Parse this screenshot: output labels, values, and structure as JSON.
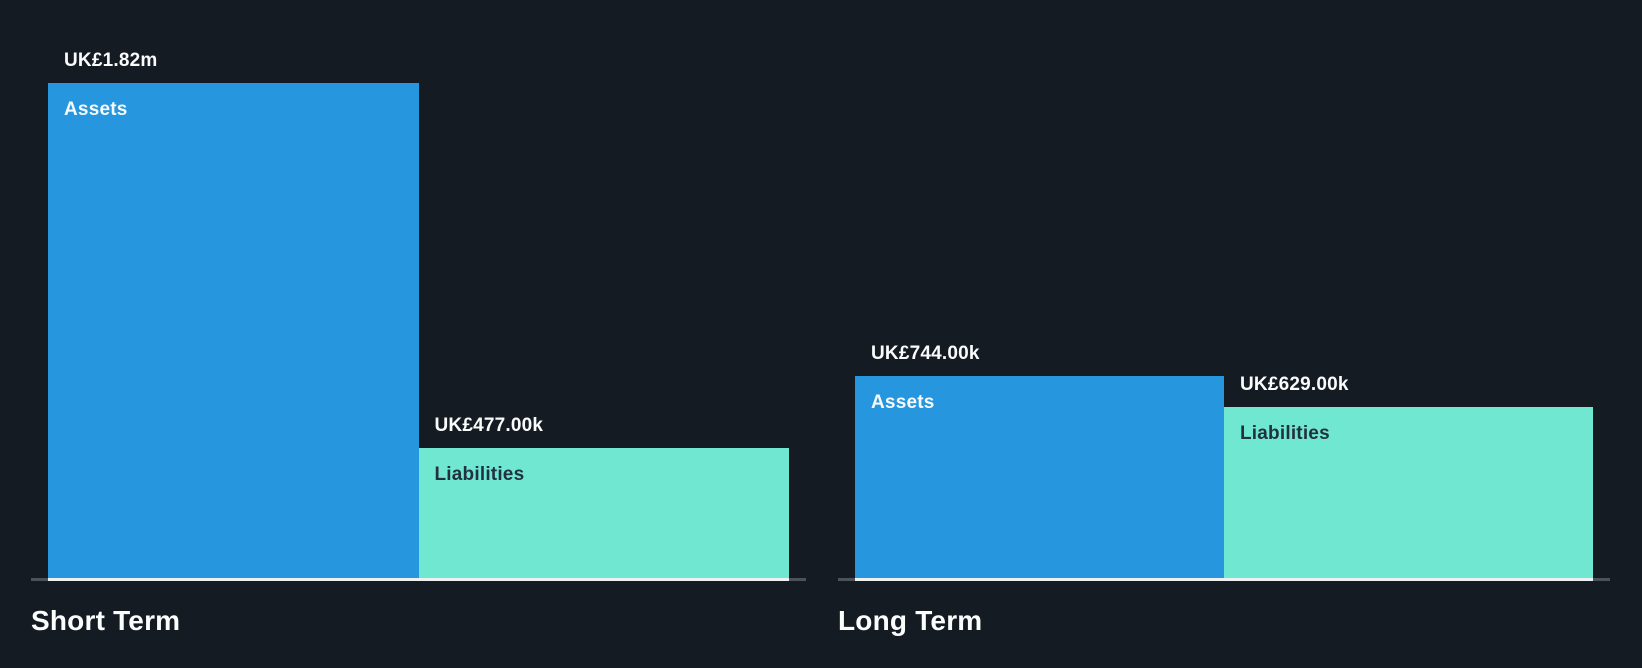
{
  "chart_data": {
    "type": "bar",
    "categories": [
      "Short Term",
      "Long Term"
    ],
    "series": [
      {
        "name": "Assets",
        "values_gbp_thousands": [
          1820,
          744
        ],
        "value_labels": [
          "UK£1.82m",
          "UK£744.00k"
        ],
        "color": "#2696de",
        "name_color": "#f7fafc"
      },
      {
        "name": "Liabilities",
        "values_gbp_thousands": [
          477,
          629
        ],
        "value_labels": [
          "UK£477.00k",
          "UK£629.00k"
        ],
        "color": "#70e7d1",
        "name_color": "#223140"
      }
    ],
    "ylim": [
      0,
      1820
    ],
    "grid": false,
    "legend_position": "in-bar",
    "colors": {
      "background": "#141b23",
      "axis_line": "#4c525b",
      "axis_line_under_bar": "#edf1f2",
      "value_text": "#fafbfb",
      "category_text": "#fcfdfd"
    }
  }
}
